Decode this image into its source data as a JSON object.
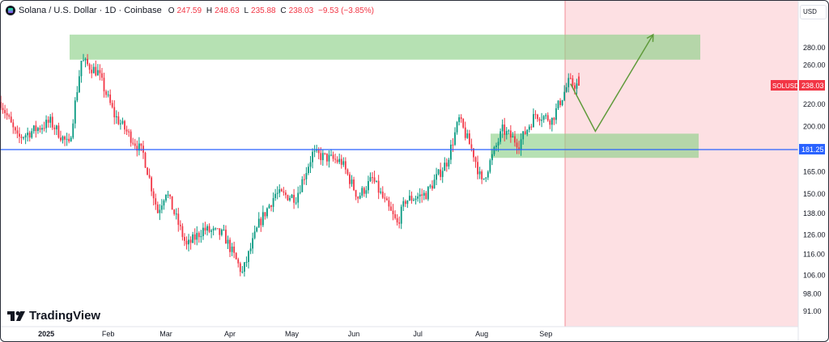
{
  "header": {
    "title": "Solana / U.S. Dollar · 1D · Coinbase",
    "open_label": "O",
    "open": "247.59",
    "high_label": "H",
    "high": "248.63",
    "low_label": "L",
    "low": "235.88",
    "close_label": "C",
    "close": "238.03",
    "change": "−9.53 (−3.85%)"
  },
  "currency": "USD",
  "branding": "TradingView",
  "colors": {
    "up": "#089981",
    "down": "#f23645",
    "line": "#2962ff",
    "zone": "#8fd18a",
    "shade": "#fde0e3",
    "arrow": "#5f9a3a"
  },
  "chart_data": {
    "type": "candlestick",
    "symbol_tag": "SOLUSD",
    "last_price": "238.03",
    "horizontal_line": "181.25",
    "scale": "log",
    "y_ticks": [
      "280.00",
      "260.00",
      "220.00",
      "200.00",
      "165.00",
      "150.00",
      "138.00",
      "126.00",
      "116.00",
      "106.00",
      "98.00",
      "91.00"
    ],
    "y_tick_values": [
      280,
      260,
      220,
      200,
      165,
      150,
      138,
      126,
      116,
      106,
      98,
      91
    ],
    "x_ticks": [
      "2025",
      "Feb",
      "Mar",
      "Apr",
      "May",
      "Jun",
      "Jul",
      "Aug",
      "Sep"
    ],
    "x_tick_days": [
      22,
      52,
      80,
      111,
      141,
      171,
      202,
      233,
      264
    ],
    "approx_close_path": [
      [
        0,
        222
      ],
      [
        8,
        190
      ],
      [
        24,
        204
      ],
      [
        33,
        184
      ],
      [
        39,
        265
      ],
      [
        47,
        252
      ],
      [
        55,
        210
      ],
      [
        69,
        178
      ],
      [
        76,
        139
      ],
      [
        80,
        152
      ],
      [
        90,
        120
      ],
      [
        98,
        129
      ],
      [
        108,
        126
      ],
      [
        117,
        107
      ],
      [
        125,
        132
      ],
      [
        133,
        150
      ],
      [
        143,
        148
      ],
      [
        151,
        178
      ],
      [
        165,
        172
      ],
      [
        173,
        148
      ],
      [
        180,
        160
      ],
      [
        186,
        145
      ],
      [
        192,
        132
      ],
      [
        196,
        146
      ],
      [
        206,
        150
      ],
      [
        216,
        172
      ],
      [
        222,
        206
      ],
      [
        229,
        178
      ],
      [
        233,
        157
      ],
      [
        243,
        197
      ],
      [
        251,
        186
      ],
      [
        259,
        211
      ],
      [
        267,
        206
      ],
      [
        275,
        241
      ],
      [
        280,
        238
      ]
    ],
    "resistance_zone": [
      266,
      296
    ],
    "support_zone": [
      175,
      194
    ],
    "projection_path": [
      [
        276,
        240
      ],
      [
        288,
        196
      ],
      [
        316,
        296
      ]
    ]
  }
}
